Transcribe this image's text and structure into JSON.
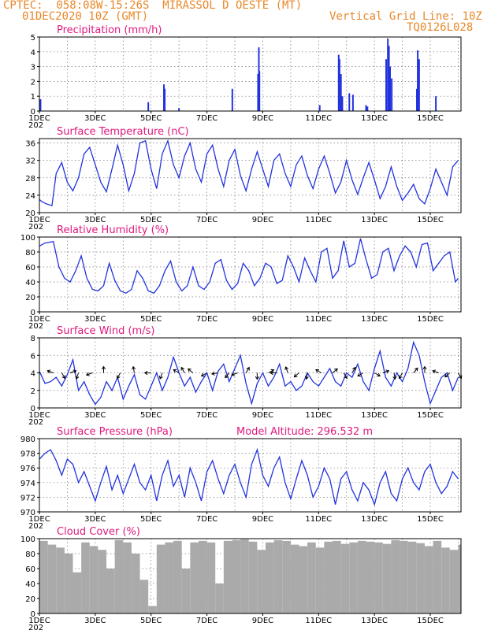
{
  "header": {
    "line1": "CPTEC:  058:08W-15:26S  MIRASSOL D OESTE (MT)",
    "line2": "01DEC2020 10Z (GMT)",
    "grid_note": "Vertical Grid Line: 10Z",
    "code": "TQ0126L028"
  },
  "colors": {
    "text": "#e8882a",
    "title": "#e0197e",
    "line": "#2233dd",
    "cloud": "#aaaaaa"
  },
  "x_axis": {
    "labels": [
      "1DEC",
      "3DEC",
      "5DEC",
      "7DEC",
      "9DEC",
      "11DEC",
      "13DEC",
      "15DEC"
    ],
    "label_days": [
      1,
      3,
      5,
      7,
      9,
      11,
      13,
      15
    ],
    "range_days": [
      1,
      16.1
    ],
    "gridline_days": [
      2,
      3,
      4,
      5,
      6,
      7,
      8,
      9,
      10,
      11,
      12,
      13,
      14,
      15,
      16
    ],
    "year_fragment": "202"
  },
  "chart_data": [
    {
      "type": "bar",
      "title": "Precipitation (mm/h)",
      "ylim": [
        0,
        5
      ],
      "yticks": [
        0,
        1,
        2,
        3,
        4,
        5
      ],
      "x_days": [
        1.04,
        4.9,
        5.46,
        5.49,
        6.0,
        7.91,
        8.83,
        8.86,
        8.88,
        11.04,
        11.72,
        11.75,
        11.8,
        11.85,
        12.1,
        12.23,
        12.7,
        12.75,
        13.42,
        13.48,
        13.52,
        13.56,
        13.62,
        14.52,
        14.55,
        14.6,
        15.2
      ],
      "values": [
        0.8,
        0.6,
        1.8,
        1.5,
        0.2,
        1.5,
        2.5,
        4.3,
        2.7,
        0.4,
        3.8,
        3.5,
        2.5,
        1.0,
        1.2,
        1.1,
        0.4,
        0.3,
        3.5,
        4.9,
        4.4,
        3.0,
        2.2,
        1.5,
        4.1,
        3.5,
        1.0
      ]
    },
    {
      "type": "line",
      "title": "Surface Temperature (nC)",
      "ylim": [
        20,
        37
      ],
      "yticks": [
        20,
        24,
        28,
        32,
        36
      ],
      "x_days": [
        1.0,
        1.1,
        1.25,
        1.45,
        1.6,
        1.8,
        2.0,
        2.2,
        2.4,
        2.6,
        2.8,
        3.0,
        3.2,
        3.4,
        3.6,
        3.8,
        4.0,
        4.2,
        4.4,
        4.6,
        4.8,
        5.0,
        5.2,
        5.4,
        5.6,
        5.8,
        6.0,
        6.2,
        6.4,
        6.6,
        6.8,
        7.0,
        7.2,
        7.4,
        7.6,
        7.8,
        8.0,
        8.2,
        8.4,
        8.6,
        8.8,
        9.0,
        9.2,
        9.4,
        9.6,
        9.8,
        10.0,
        10.2,
        10.4,
        10.6,
        10.8,
        11.0,
        11.2,
        11.4,
        11.6,
        11.8,
        12.0,
        12.2,
        12.4,
        12.6,
        12.8,
        13.0,
        13.2,
        13.4,
        13.6,
        13.8,
        14.0,
        14.2,
        14.4,
        14.6,
        14.8,
        15.0,
        15.2,
        15.4,
        15.6,
        15.8,
        16.0
      ],
      "values": [
        23.0,
        22.5,
        22.0,
        21.6,
        29.0,
        31.5,
        27.0,
        25.0,
        28.0,
        33.5,
        35.0,
        31.0,
        27.0,
        24.8,
        30.0,
        35.5,
        31.0,
        25.0,
        29.0,
        36.0,
        36.5,
        30.0,
        25.5,
        33.5,
        36.5,
        31.0,
        28.0,
        33.0,
        36.0,
        30.0,
        27.0,
        33.5,
        35.5,
        30.0,
        26.0,
        32.0,
        34.5,
        28.5,
        25.0,
        30.0,
        34.0,
        30.0,
        26.0,
        32.0,
        33.5,
        29.0,
        26.0,
        31.0,
        33.0,
        28.5,
        25.5,
        30.0,
        33.0,
        29.0,
        24.5,
        27.0,
        32.0,
        27.5,
        24.2,
        28.0,
        31.5,
        27.5,
        23.2,
        26.0,
        30.5,
        26.0,
        22.8,
        24.5,
        26.5,
        23.2,
        22.0,
        25.5,
        30.0,
        27.0,
        24.0,
        30.5,
        32.0
      ]
    },
    {
      "type": "line",
      "title": "Relative Humidity (%)",
      "ylim": [
        0,
        100
      ],
      "yticks": [
        0,
        20,
        40,
        60,
        80,
        100
      ],
      "x_days": [
        1.0,
        1.2,
        1.5,
        1.7,
        1.9,
        2.1,
        2.3,
        2.5,
        2.7,
        2.9,
        3.1,
        3.3,
        3.5,
        3.7,
        3.9,
        4.1,
        4.3,
        4.5,
        4.7,
        4.9,
        5.1,
        5.3,
        5.5,
        5.7,
        5.9,
        6.1,
        6.3,
        6.5,
        6.7,
        6.9,
        7.1,
        7.3,
        7.5,
        7.7,
        7.9,
        8.1,
        8.3,
        8.5,
        8.7,
        8.9,
        9.1,
        9.3,
        9.5,
        9.7,
        9.9,
        10.1,
        10.3,
        10.5,
        10.7,
        10.9,
        11.1,
        11.3,
        11.5,
        11.7,
        11.9,
        12.1,
        12.3,
        12.5,
        12.7,
        12.9,
        13.1,
        13.3,
        13.5,
        13.7,
        13.9,
        14.1,
        14.3,
        14.5,
        14.7,
        14.9,
        15.1,
        15.3,
        15.5,
        15.7,
        15.9,
        16.0
      ],
      "values": [
        88,
        92,
        94,
        60,
        45,
        40,
        55,
        75,
        45,
        30,
        28,
        35,
        65,
        42,
        28,
        25,
        30,
        55,
        45,
        28,
        25,
        35,
        55,
        68,
        40,
        28,
        35,
        60,
        35,
        30,
        40,
        65,
        70,
        42,
        30,
        38,
        65,
        55,
        35,
        45,
        65,
        60,
        38,
        42,
        75,
        60,
        40,
        72,
        55,
        40,
        80,
        85,
        45,
        55,
        95,
        60,
        65,
        98,
        70,
        45,
        50,
        80,
        85,
        55,
        75,
        88,
        80,
        60,
        90,
        92,
        55,
        65,
        75,
        80,
        40,
        45
      ]
    },
    {
      "type": "line",
      "title": "Surface Wind (m/s)",
      "ylim": [
        0,
        8
      ],
      "yticks": [
        0,
        2,
        4,
        6,
        8
      ],
      "x_days": [
        1.0,
        1.2,
        1.4,
        1.6,
        1.8,
        2.0,
        2.2,
        2.4,
        2.6,
        2.8,
        3.0,
        3.2,
        3.4,
        3.6,
        3.8,
        4.0,
        4.2,
        4.4,
        4.6,
        4.8,
        5.0,
        5.2,
        5.4,
        5.6,
        5.8,
        6.0,
        6.2,
        6.4,
        6.6,
        6.8,
        7.0,
        7.2,
        7.4,
        7.6,
        7.8,
        8.0,
        8.2,
        8.4,
        8.6,
        8.8,
        9.0,
        9.2,
        9.4,
        9.6,
        9.8,
        10.0,
        10.2,
        10.4,
        10.6,
        10.8,
        11.0,
        11.2,
        11.4,
        11.6,
        11.8,
        12.0,
        12.2,
        12.4,
        12.6,
        12.8,
        13.0,
        13.2,
        13.4,
        13.6,
        13.8,
        14.0,
        14.2,
        14.4,
        14.6,
        14.8,
        15.0,
        15.2,
        15.4,
        15.6,
        15.8,
        16.0
      ],
      "values": [
        4.2,
        2.8,
        3.0,
        3.5,
        2.5,
        3.8,
        5.5,
        2.0,
        3.0,
        1.5,
        0.4,
        1.2,
        3.0,
        2.0,
        3.5,
        1.0,
        2.5,
        3.8,
        1.5,
        1.0,
        2.5,
        4.0,
        2.0,
        3.5,
        5.8,
        4.0,
        2.5,
        3.5,
        1.8,
        3.0,
        4.0,
        2.0,
        4.2,
        5.0,
        3.0,
        4.5,
        6.0,
        2.8,
        0.5,
        2.8,
        4.0,
        2.5,
        3.5,
        5.0,
        2.5,
        3.0,
        2.0,
        2.5,
        4.0,
        3.0,
        2.5,
        3.5,
        4.5,
        3.0,
        2.5,
        4.0,
        3.5,
        5.0,
        3.0,
        2.0,
        4.5,
        6.5,
        3.5,
        2.5,
        4.0,
        3.0,
        4.5,
        7.5,
        6.0,
        3.0,
        0.5,
        2.0,
        3.5,
        4.0,
        2.0,
        3.5
      ],
      "arrows": {
        "x_days": [
          1.5,
          1.8,
          2.1,
          2.4,
          2.9,
          3.3,
          3.9,
          4.4,
          5.0,
          5.4,
          6.0,
          6.2,
          6.5,
          7.0,
          7.4,
          7.8,
          8.1,
          8.4,
          8.8,
          9.2,
          9.5,
          9.9,
          10.3,
          10.6,
          11.1,
          11.5,
          11.9,
          12.2,
          12.6,
          13.0,
          13.3,
          13.7,
          14.0,
          14.4,
          14.8,
          15.3,
          15.7,
          16.0
        ],
        "angles_deg": [
          160,
          300,
          20,
          250,
          200,
          90,
          240,
          100,
          180,
          250,
          150,
          120,
          140,
          210,
          190,
          230,
          200,
          60,
          270,
          30,
          180,
          110,
          220,
          260,
          150,
          40,
          300,
          60,
          210,
          330,
          20,
          280,
          240,
          50,
          90,
          160,
          220,
          300
        ]
      }
    },
    {
      "type": "line",
      "title": "Surface Pressure (hPa)",
      "annotation": "Model Altitude: 296.532 m",
      "ylim": [
        970,
        980
      ],
      "yticks": [
        970,
        972,
        974,
        976,
        978,
        980
      ],
      "x_days": [
        1.0,
        1.2,
        1.4,
        1.6,
        1.8,
        2.0,
        2.2,
        2.4,
        2.6,
        2.8,
        3.0,
        3.2,
        3.4,
        3.6,
        3.8,
        4.0,
        4.2,
        4.4,
        4.6,
        4.8,
        5.0,
        5.2,
        5.4,
        5.6,
        5.8,
        6.0,
        6.2,
        6.4,
        6.6,
        6.8,
        7.0,
        7.2,
        7.4,
        7.6,
        7.8,
        8.0,
        8.2,
        8.4,
        8.6,
        8.8,
        9.0,
        9.2,
        9.4,
        9.6,
        9.8,
        10.0,
        10.2,
        10.4,
        10.6,
        10.8,
        11.0,
        11.2,
        11.4,
        11.6,
        11.8,
        12.0,
        12.2,
        12.4,
        12.6,
        12.8,
        13.0,
        13.2,
        13.4,
        13.6,
        13.8,
        14.0,
        14.2,
        14.4,
        14.6,
        14.8,
        15.0,
        15.2,
        15.4,
        15.6,
        15.8,
        16.0
      ],
      "values": [
        977.2,
        978.0,
        978.5,
        977.0,
        975.0,
        977.2,
        976.5,
        974.0,
        975.5,
        973.5,
        971.5,
        974.0,
        976.2,
        973.0,
        975.0,
        972.5,
        974.5,
        976.5,
        974.0,
        973.0,
        975.0,
        971.5,
        975.0,
        977.0,
        973.5,
        975.0,
        972.0,
        976.0,
        974.0,
        971.5,
        975.5,
        977.0,
        974.5,
        972.5,
        975.0,
        976.5,
        974.0,
        972.0,
        976.5,
        978.5,
        975.0,
        973.5,
        976.0,
        977.5,
        974.0,
        971.8,
        974.5,
        977.0,
        975.0,
        972.0,
        973.5,
        976.0,
        974.5,
        971.0,
        974.5,
        975.5,
        973.0,
        971.5,
        974.0,
        973.0,
        971.0,
        974.0,
        975.5,
        972.5,
        971.5,
        974.5,
        976.0,
        974.0,
        973.0,
        975.5,
        976.5,
        974.0,
        972.5,
        973.5,
        975.5,
        974.5
      ]
    },
    {
      "type": "bar",
      "title": "Cloud Cover (%)",
      "ylim": [
        0,
        100
      ],
      "yticks": [
        0,
        20,
        40,
        60,
        80,
        100
      ],
      "x_days": [
        1.0,
        1.3,
        1.6,
        1.9,
        2.2,
        2.5,
        2.8,
        3.1,
        3.4,
        3.7,
        4.0,
        4.3,
        4.6,
        4.9,
        5.2,
        5.5,
        5.8,
        6.1,
        6.4,
        6.7,
        7.0,
        7.3,
        7.6,
        7.9,
        8.2,
        8.5,
        8.8,
        9.1,
        9.4,
        9.7,
        10.0,
        10.3,
        10.6,
        10.9,
        11.2,
        11.5,
        11.8,
        12.1,
        12.4,
        12.7,
        13.0,
        13.3,
        13.6,
        13.9,
        14.2,
        14.5,
        14.8,
        15.1,
        15.4,
        15.7,
        16.0
      ],
      "values": [
        97,
        92,
        88,
        80,
        55,
        95,
        90,
        85,
        60,
        98,
        95,
        80,
        45,
        10,
        92,
        95,
        97,
        60,
        95,
        97,
        95,
        40,
        97,
        98,
        99,
        96,
        85,
        95,
        98,
        97,
        92,
        90,
        95,
        88,
        96,
        97,
        93,
        95,
        97,
        96,
        95,
        93,
        98,
        97,
        96,
        94,
        90,
        97,
        88,
        85,
        92
      ]
    }
  ]
}
